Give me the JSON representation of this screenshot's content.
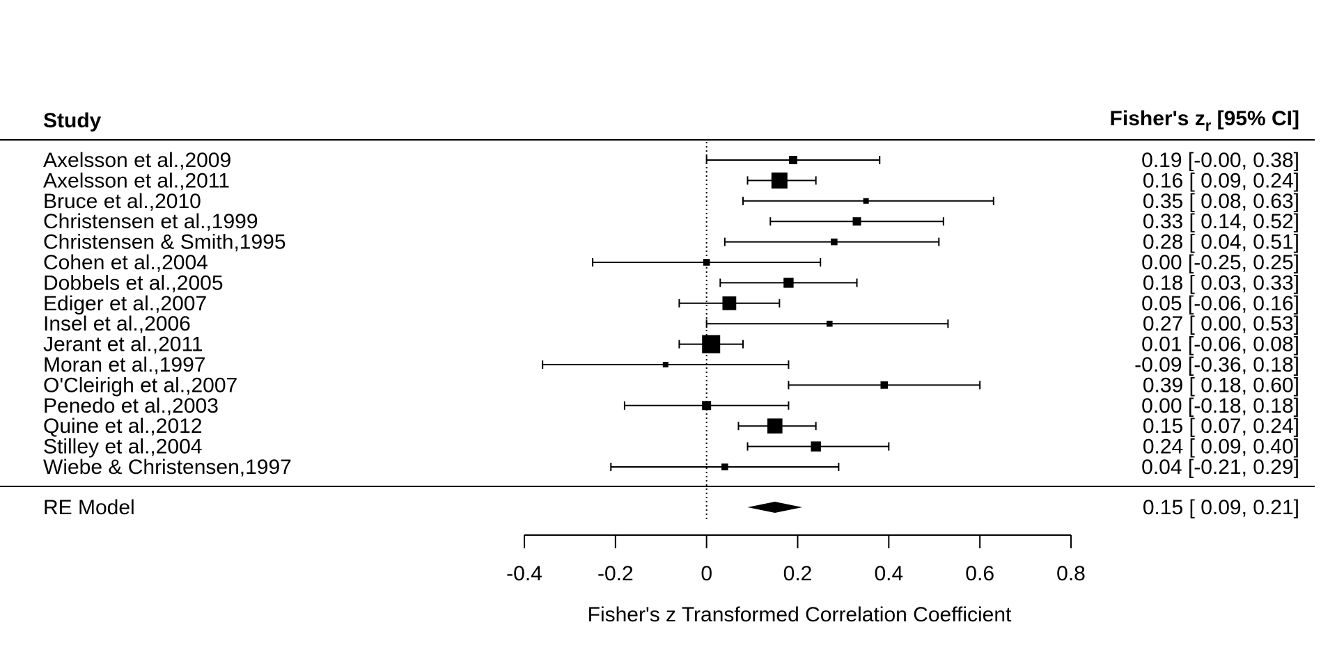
{
  "chart_data": {
    "type": "forest",
    "header_left": "Study",
    "header_right_main": "Fisher's z",
    "header_right_sub": "r",
    "header_right_tail": " [95% CI]",
    "xlabel": "Fisher's z Transformed Correlation Coefficient",
    "xlim": [
      -0.4,
      0.8
    ],
    "xticks": [
      "-0.4",
      "-0.2",
      "0",
      "0.2",
      "0.4",
      "0.6",
      "0.8"
    ],
    "xtick_values": [
      -0.4,
      -0.2,
      0,
      0.2,
      0.4,
      0.6,
      0.8
    ],
    "reference_line": 0,
    "studies": [
      {
        "label": "Axelsson et al.,2009",
        "est": 0.19,
        "lo": 0.0,
        "hi": 0.38,
        "ci_text": "0.19 [-0.00, 0.38]",
        "weight": 0.45
      },
      {
        "label": "Axelsson et al.,2011",
        "est": 0.16,
        "lo": 0.09,
        "hi": 0.24,
        "ci_text": "0.16 [ 0.09, 0.24]",
        "weight": 1.0
      },
      {
        "label": "Bruce et al.,2010",
        "est": 0.35,
        "lo": 0.08,
        "hi": 0.63,
        "ci_text": "0.35 [ 0.08, 0.63]",
        "weight": 0.25
      },
      {
        "label": "Christensen et al.,1999",
        "est": 0.33,
        "lo": 0.14,
        "hi": 0.52,
        "ci_text": "0.33 [ 0.14, 0.52]",
        "weight": 0.45
      },
      {
        "label": "Christensen & Smith,1995",
        "est": 0.28,
        "lo": 0.04,
        "hi": 0.51,
        "ci_text": "0.28 [ 0.04, 0.51]",
        "weight": 0.33
      },
      {
        "label": "Cohen et al.,2004",
        "est": 0.0,
        "lo": -0.25,
        "hi": 0.25,
        "ci_text": "0.00 [-0.25, 0.25]",
        "weight": 0.33
      },
      {
        "label": "Dobbels et al.,2005",
        "est": 0.18,
        "lo": 0.03,
        "hi": 0.33,
        "ci_text": "0.18 [ 0.03, 0.33]",
        "weight": 0.57
      },
      {
        "label": "Ediger et al.,2007",
        "est": 0.05,
        "lo": -0.06,
        "hi": 0.16,
        "ci_text": "0.05 [-0.06, 0.16]",
        "weight": 0.84
      },
      {
        "label": "Insel et al.,2006",
        "est": 0.27,
        "lo": 0.0,
        "hi": 0.53,
        "ci_text": "0.27 [ 0.00, 0.53]",
        "weight": 0.28
      },
      {
        "label": "Jerant et al.,2011",
        "est": 0.01,
        "lo": -0.06,
        "hi": 0.08,
        "ci_text": "0.01 [-0.06, 0.08]",
        "weight": 1.15
      },
      {
        "label": "Moran et al.,1997",
        "est": -0.09,
        "lo": -0.36,
        "hi": 0.18,
        "ci_text": "-0.09 [-0.36, 0.18]",
        "weight": 0.25
      },
      {
        "label": "O'Cleirigh et al.,2007",
        "est": 0.39,
        "lo": 0.18,
        "hi": 0.6,
        "ci_text": "0.39 [ 0.18, 0.60]",
        "weight": 0.38
      },
      {
        "label": "Penedo et al.,2003",
        "est": 0.0,
        "lo": -0.18,
        "hi": 0.18,
        "ci_text": "0.00 [-0.18, 0.18]",
        "weight": 0.5
      },
      {
        "label": "Quine et al.,2012",
        "est": 0.15,
        "lo": 0.07,
        "hi": 0.24,
        "ci_text": "0.15 [ 0.07, 0.24]",
        "weight": 0.93
      },
      {
        "label": "Stilley et al.,2004",
        "est": 0.24,
        "lo": 0.09,
        "hi": 0.4,
        "ci_text": "0.24 [ 0.09, 0.40]",
        "weight": 0.57
      },
      {
        "label": "Wiebe & Christensen,1997",
        "est": 0.04,
        "lo": -0.21,
        "hi": 0.29,
        "ci_text": "0.04 [-0.21, 0.29]",
        "weight": 0.33
      }
    ],
    "summary": {
      "label": "RE Model",
      "est": 0.15,
      "lo": 0.09,
      "hi": 0.21,
      "ci_text": "0.15 [ 0.09, 0.21]"
    }
  }
}
